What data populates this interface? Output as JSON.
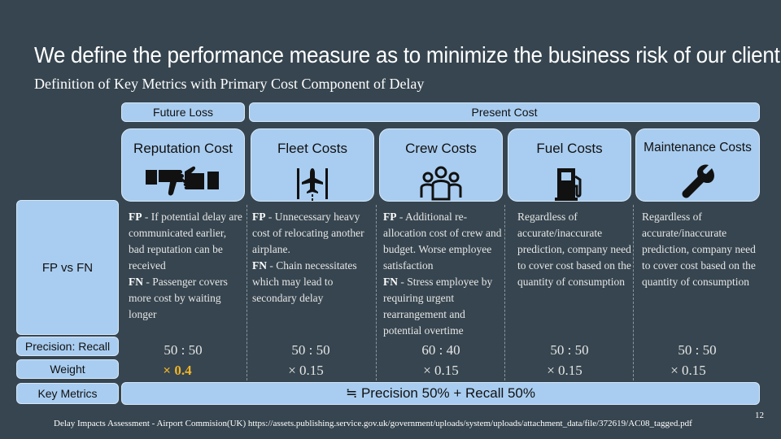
{
  "title": "We define the performance measure as to minimize the business risk of our client",
  "subtitle": "Definition of Key Metrics with Primary Cost Component of Delay",
  "headers": {
    "future": "Future Loss",
    "present": "Present Cost"
  },
  "categories": [
    {
      "label": "Reputation Cost",
      "icon": "thumbs-down-hand-icon"
    },
    {
      "label": "Fleet Costs",
      "icon": "airplane-icon"
    },
    {
      "label": "Crew Costs",
      "icon": "crew-icon"
    },
    {
      "label": "Fuel Costs",
      "icon": "fuel-pump-icon"
    },
    {
      "label": "Maintenance Costs",
      "icon": "wrench-icon"
    }
  ],
  "row_labels": {
    "fpfn": "FP vs FN",
    "precision_recall": "Precision: Recall",
    "weight": "Weight",
    "key_metrics": "Key Metrics"
  },
  "fpfn": {
    "reputation": {
      "fp_tag": "FP",
      "fp_text": " - If potential delay are  communicated earlier, bad reputation can be received",
      "fn_tag": "FN",
      "fn_text": " - Passenger covers more cost by waiting longer"
    },
    "fleet": {
      "fp_tag": "FP",
      "fp_text": " - Unnecessary heavy cost of relocating another airplane.",
      "fn_tag": "FN",
      "fn_text": " - Chain necessitates which may lead to secondary delay"
    },
    "crew": {
      "fp_tag": "FP",
      "fp_text": " - Additional re-allocation cost of crew and budget. Worse employee satisfaction",
      "fn_tag": "FN",
      "fn_text": " - Stress employee by requiring urgent rearrangement and potential overtime"
    },
    "fuel": "Regardless of accurate/inaccurate prediction, company need to cover cost based on the quantity of consumption",
    "maintenance": " Regardless of accurate/inaccurate prediction, company need to cover cost based on the quantity of consumption"
  },
  "precision_recall": [
    "50 : 50",
    "50 : 50",
    "60 : 40",
    "50 : 50",
    "50 : 50"
  ],
  "weights": [
    "× 0.4",
    "× 0.15",
    "× 0.15",
    "× 0.15",
    "× 0.15"
  ],
  "key_metrics_value": "≒ Precision 50% + Recall 50%",
  "footer": "Delay Impacts Assessment - Airport Commision(UK) https://assets.publishing.service.gov.uk/government/uploads/system/uploads/attachment_data/file/372619/AC08_tagged.pdf",
  "page_number": "12",
  "colors": {
    "background": "#36454f",
    "box": "#a9cdf0",
    "accent": "#f0b429"
  }
}
